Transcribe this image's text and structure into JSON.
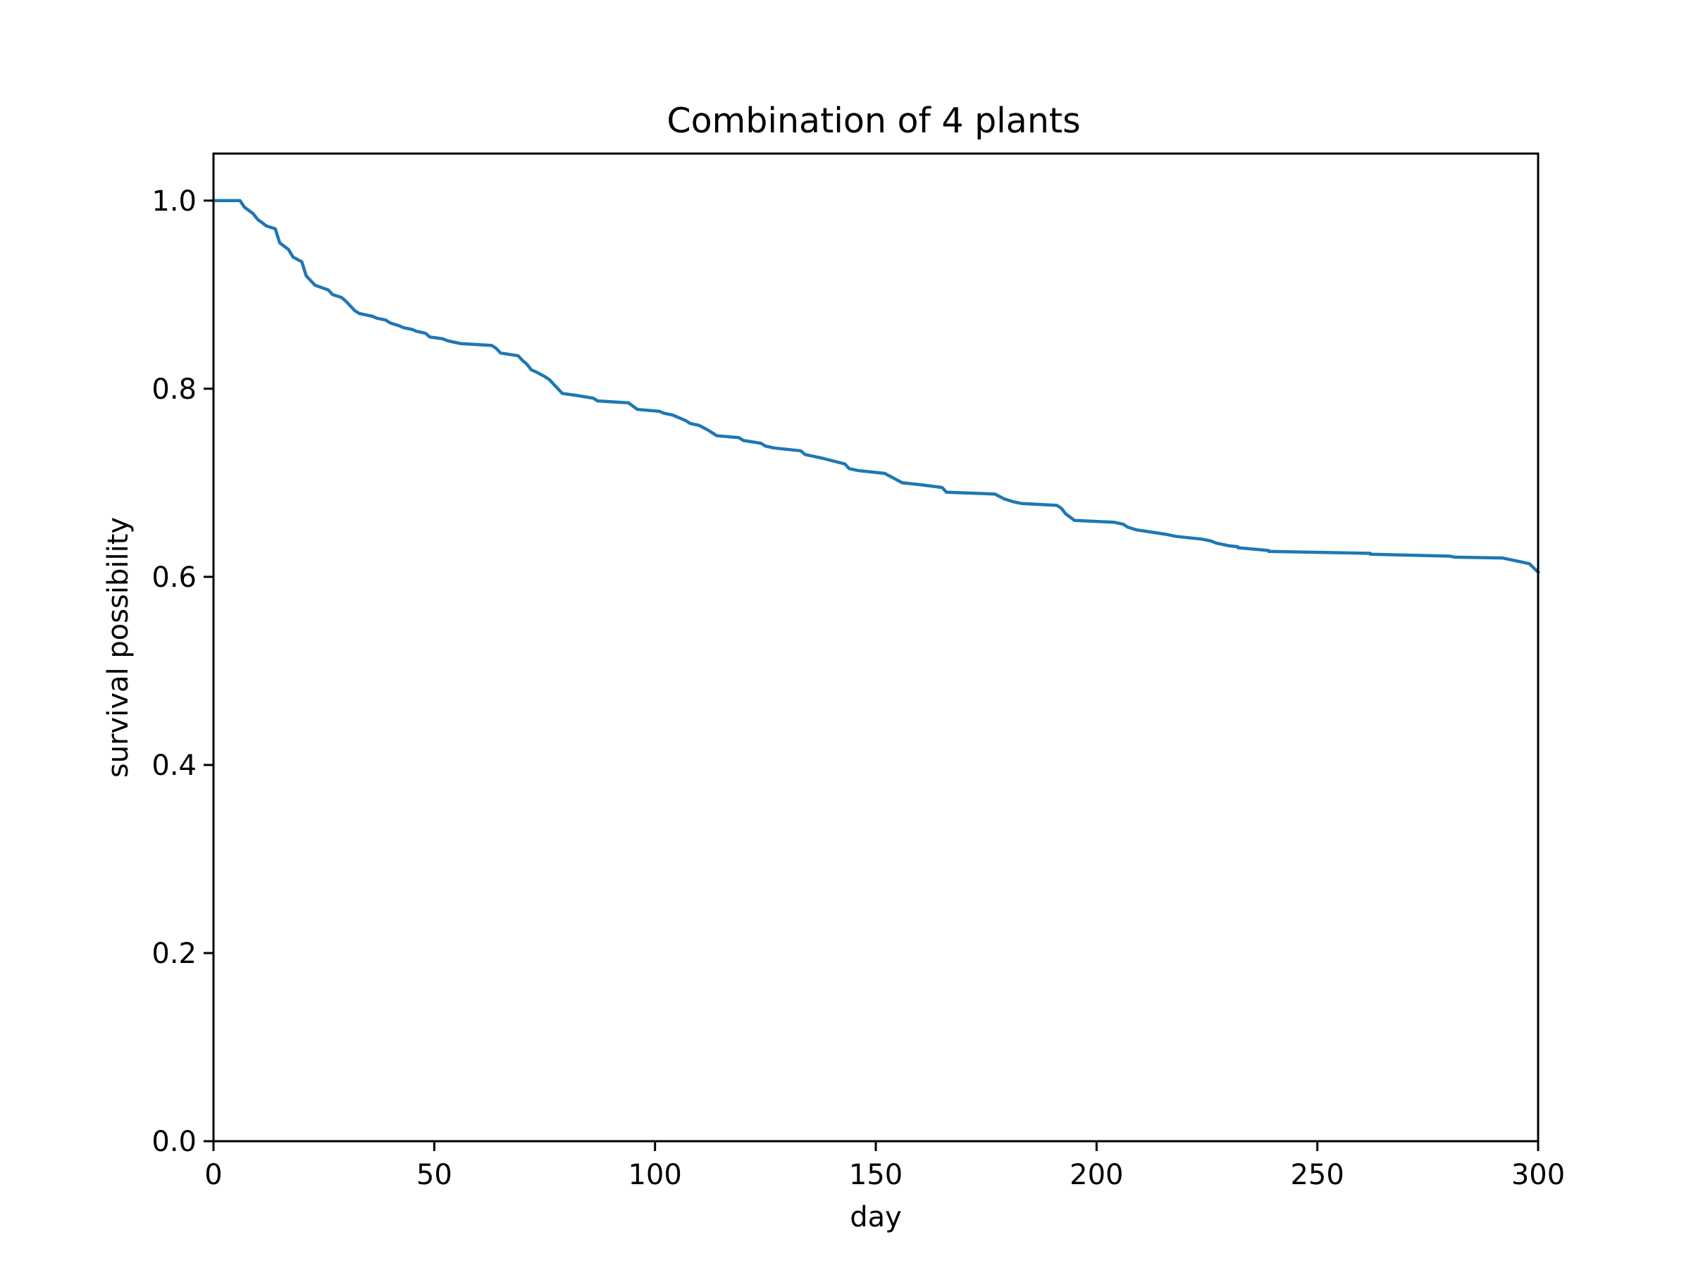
{
  "chart_data": {
    "type": "line",
    "title": "Combination of 4 plants",
    "xlabel": "day",
    "ylabel": "survival possibility",
    "xlim": [
      0,
      300
    ],
    "ylim": [
      0.0,
      1.05
    ],
    "xticks": [
      0,
      50,
      100,
      150,
      200,
      250,
      300
    ],
    "xtick_labels": [
      "0",
      "50",
      "100",
      "150",
      "200",
      "250",
      "300"
    ],
    "yticks": [
      0.0,
      0.2,
      0.4,
      0.6,
      0.8,
      1.0
    ],
    "ytick_labels": [
      "0.0",
      "0.2",
      "0.4",
      "0.6",
      "0.8",
      "1.0"
    ],
    "grid": false,
    "series": [
      {
        "color": "#1f77b4",
        "x": [
          0,
          6,
          7,
          9,
          10,
          12,
          14,
          15,
          17,
          18,
          20,
          21,
          23,
          26,
          27,
          29,
          30,
          32,
          33,
          36,
          37,
          39,
          40,
          42,
          43,
          45,
          46,
          48,
          49,
          52,
          53,
          55,
          56,
          63,
          64,
          65,
          69,
          70,
          71,
          72,
          73,
          75,
          76,
          78,
          79,
          82,
          86,
          87,
          94,
          96,
          101,
          102,
          104,
          105,
          107,
          108,
          110,
          112,
          113,
          114,
          119,
          120,
          124,
          125,
          127,
          133,
          134,
          136,
          138,
          143,
          144,
          146,
          152,
          154,
          156,
          160,
          165,
          166,
          177,
          179,
          181,
          183,
          191,
          192,
          193,
          195,
          204,
          206,
          207,
          209,
          216,
          218,
          224,
          226,
          227,
          229,
          230,
          232,
          232,
          239,
          239,
          262,
          262,
          280,
          281,
          292,
          294,
          296,
          298,
          300
        ],
        "y": [
          1.0,
          1.0,
          0.993,
          0.986,
          0.98,
          0.973,
          0.97,
          0.955,
          0.948,
          0.94,
          0.935,
          0.92,
          0.91,
          0.905,
          0.9,
          0.897,
          0.893,
          0.883,
          0.88,
          0.877,
          0.875,
          0.873,
          0.87,
          0.867,
          0.865,
          0.863,
          0.861,
          0.859,
          0.855,
          0.853,
          0.851,
          0.849,
          0.848,
          0.846,
          0.843,
          0.838,
          0.835,
          0.83,
          0.826,
          0.82,
          0.818,
          0.813,
          0.81,
          0.8,
          0.795,
          0.793,
          0.79,
          0.787,
          0.785,
          0.778,
          0.776,
          0.774,
          0.772,
          0.77,
          0.766,
          0.763,
          0.761,
          0.756,
          0.753,
          0.75,
          0.748,
          0.745,
          0.742,
          0.739,
          0.737,
          0.734,
          0.73,
          0.728,
          0.726,
          0.72,
          0.715,
          0.713,
          0.71,
          0.705,
          0.7,
          0.698,
          0.695,
          0.69,
          0.688,
          0.683,
          0.68,
          0.678,
          0.676,
          0.673,
          0.667,
          0.66,
          0.658,
          0.656,
          0.653,
          0.65,
          0.645,
          0.643,
          0.64,
          0.638,
          0.636,
          0.634,
          0.633,
          0.632,
          0.631,
          0.628,
          0.627,
          0.625,
          0.624,
          0.622,
          0.621,
          0.62,
          0.618,
          0.616,
          0.614,
          0.605
        ]
      }
    ]
  }
}
